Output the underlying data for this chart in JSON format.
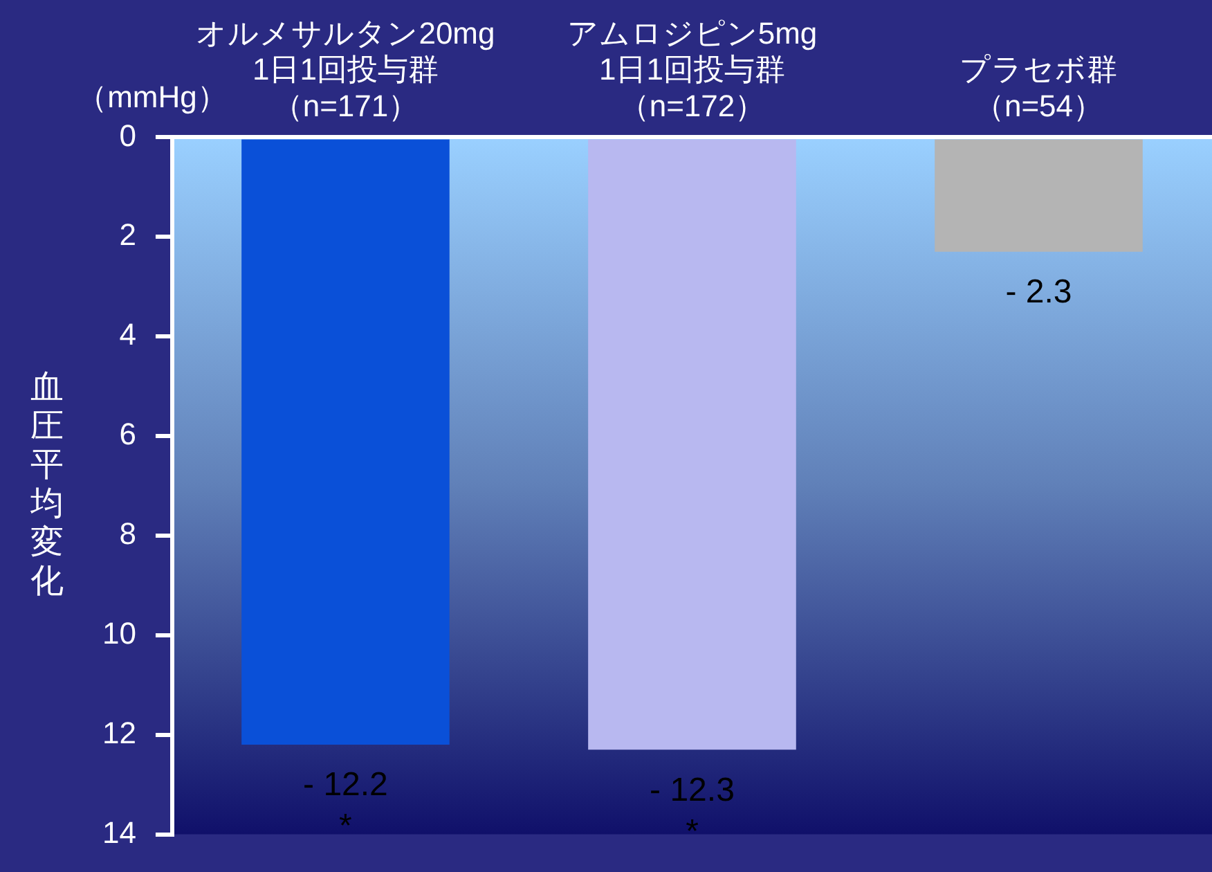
{
  "chart_data": {
    "type": "bar",
    "ylabel": "血圧平均変化",
    "categories": [
      "オルメサルタン20mg1日1回投与群（n=171）",
      "アムロジピン5mg1日1回投与群（n=172）",
      "プラセボ群（n=54）"
    ],
    "values": [
      -12.2,
      -12.3,
      -2.3
    ],
    "colors": [
      "#0a50d8",
      "#b8b8f0",
      "#b4b4b4"
    ],
    "value_labels": [
      "- 12.2",
      "- 12.3",
      "- 2.3"
    ],
    "ylim": [
      -14,
      0
    ],
    "yticks": [
      0,
      {
        "value": -2,
        "label": "2"
      },
      {
        "value": -4,
        "label": "4"
      },
      {
        "value": -6,
        "label": "6"
      },
      {
        "value": -8,
        "label": "8"
      },
      {
        "value": -10,
        "label": "10"
      },
      {
        "value": -12,
        "label": "12"
      },
      {
        "value": -14,
        "label": "14"
      }
    ],
    "annotations": [
      "（mmHg）",
      "*",
      "*"
    ],
    "grid": false,
    "legend": false
  }
}
